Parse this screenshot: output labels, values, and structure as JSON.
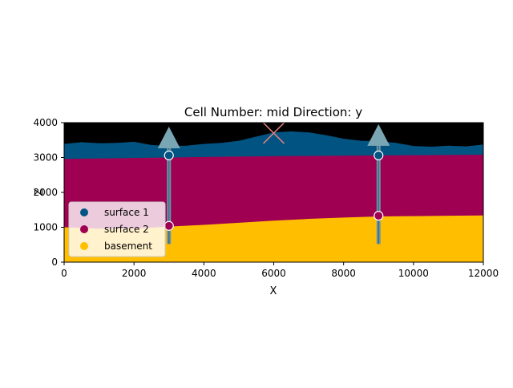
{
  "chart_data": {
    "type": "area",
    "title": "Cell Number: mid Direction: y",
    "xlabel": "X",
    "ylabel": "Z",
    "xlim": [
      0,
      12000
    ],
    "ylim": [
      0,
      4000
    ],
    "xticks": [
      0,
      2000,
      4000,
      6000,
      8000,
      10000,
      12000
    ],
    "yticks": [
      0,
      1000,
      2000,
      3000,
      4000
    ],
    "x_tick_labels": [
      "0",
      "2000",
      "4000",
      "6000",
      "8000",
      "10000",
      "12000"
    ],
    "y_tick_labels": [
      "0",
      "1000",
      "2000",
      "3000",
      "4000"
    ],
    "background_color": "#000000",
    "grid": false,
    "legend_position": "lower-left",
    "layers": [
      {
        "name": "surface 1",
        "color": "#015482",
        "x": [
          0,
          500,
          1000,
          1500,
          2000,
          2500,
          3000,
          3500,
          4000,
          4500,
          5000,
          5500,
          6000,
          6500,
          7000,
          7500,
          8000,
          8500,
          9000,
          9500,
          10000,
          10500,
          11000,
          11500,
          12000
        ],
        "top": [
          3390,
          3440,
          3410,
          3420,
          3450,
          3360,
          3330,
          3340,
          3390,
          3420,
          3480,
          3600,
          3720,
          3750,
          3720,
          3640,
          3540,
          3480,
          3470,
          3420,
          3330,
          3310,
          3340,
          3320,
          3370
        ]
      },
      {
        "name": "surface 2",
        "color": "#9f0052",
        "x": [
          0,
          3000,
          6000,
          9000,
          12000
        ],
        "top": [
          2960,
          3000,
          3040,
          3060,
          3080
        ]
      },
      {
        "name": "basement",
        "color": "#ffbe00",
        "x": [
          0,
          1000,
          2000,
          3000,
          4000,
          5000,
          6000,
          7000,
          8000,
          9000,
          10000,
          11000,
          12000
        ],
        "top": [
          1000,
          960,
          960,
          1020,
          1070,
          1130,
          1190,
          1240,
          1280,
          1310,
          1320,
          1330,
          1340
        ]
      }
    ],
    "surface_points": [
      {
        "series": "surface 1",
        "x": 3000,
        "y": 3060
      },
      {
        "series": "surface 1",
        "x": 9000,
        "y": 3060
      },
      {
        "series": "surface 2",
        "x": 3000,
        "y": 1040
      },
      {
        "series": "surface 2",
        "x": 9000,
        "y": 1330
      }
    ],
    "orientations": [
      {
        "x": 3000,
        "y": 3380
      },
      {
        "x": 9000,
        "y": 3450
      }
    ],
    "wells": [
      {
        "x": 3000,
        "y_top": 3380,
        "y_bottom": 520
      },
      {
        "x": 9000,
        "y_top": 3450,
        "y_bottom": 520
      }
    ],
    "markers": [
      {
        "shape": "x",
        "x": 6000,
        "y": 3700,
        "color": "#e07f7f"
      }
    ],
    "legend": {
      "entries": [
        "surface 1",
        "surface 2",
        "basement"
      ],
      "colors": [
        "#015482",
        "#9f0052",
        "#ffbe00"
      ]
    }
  }
}
